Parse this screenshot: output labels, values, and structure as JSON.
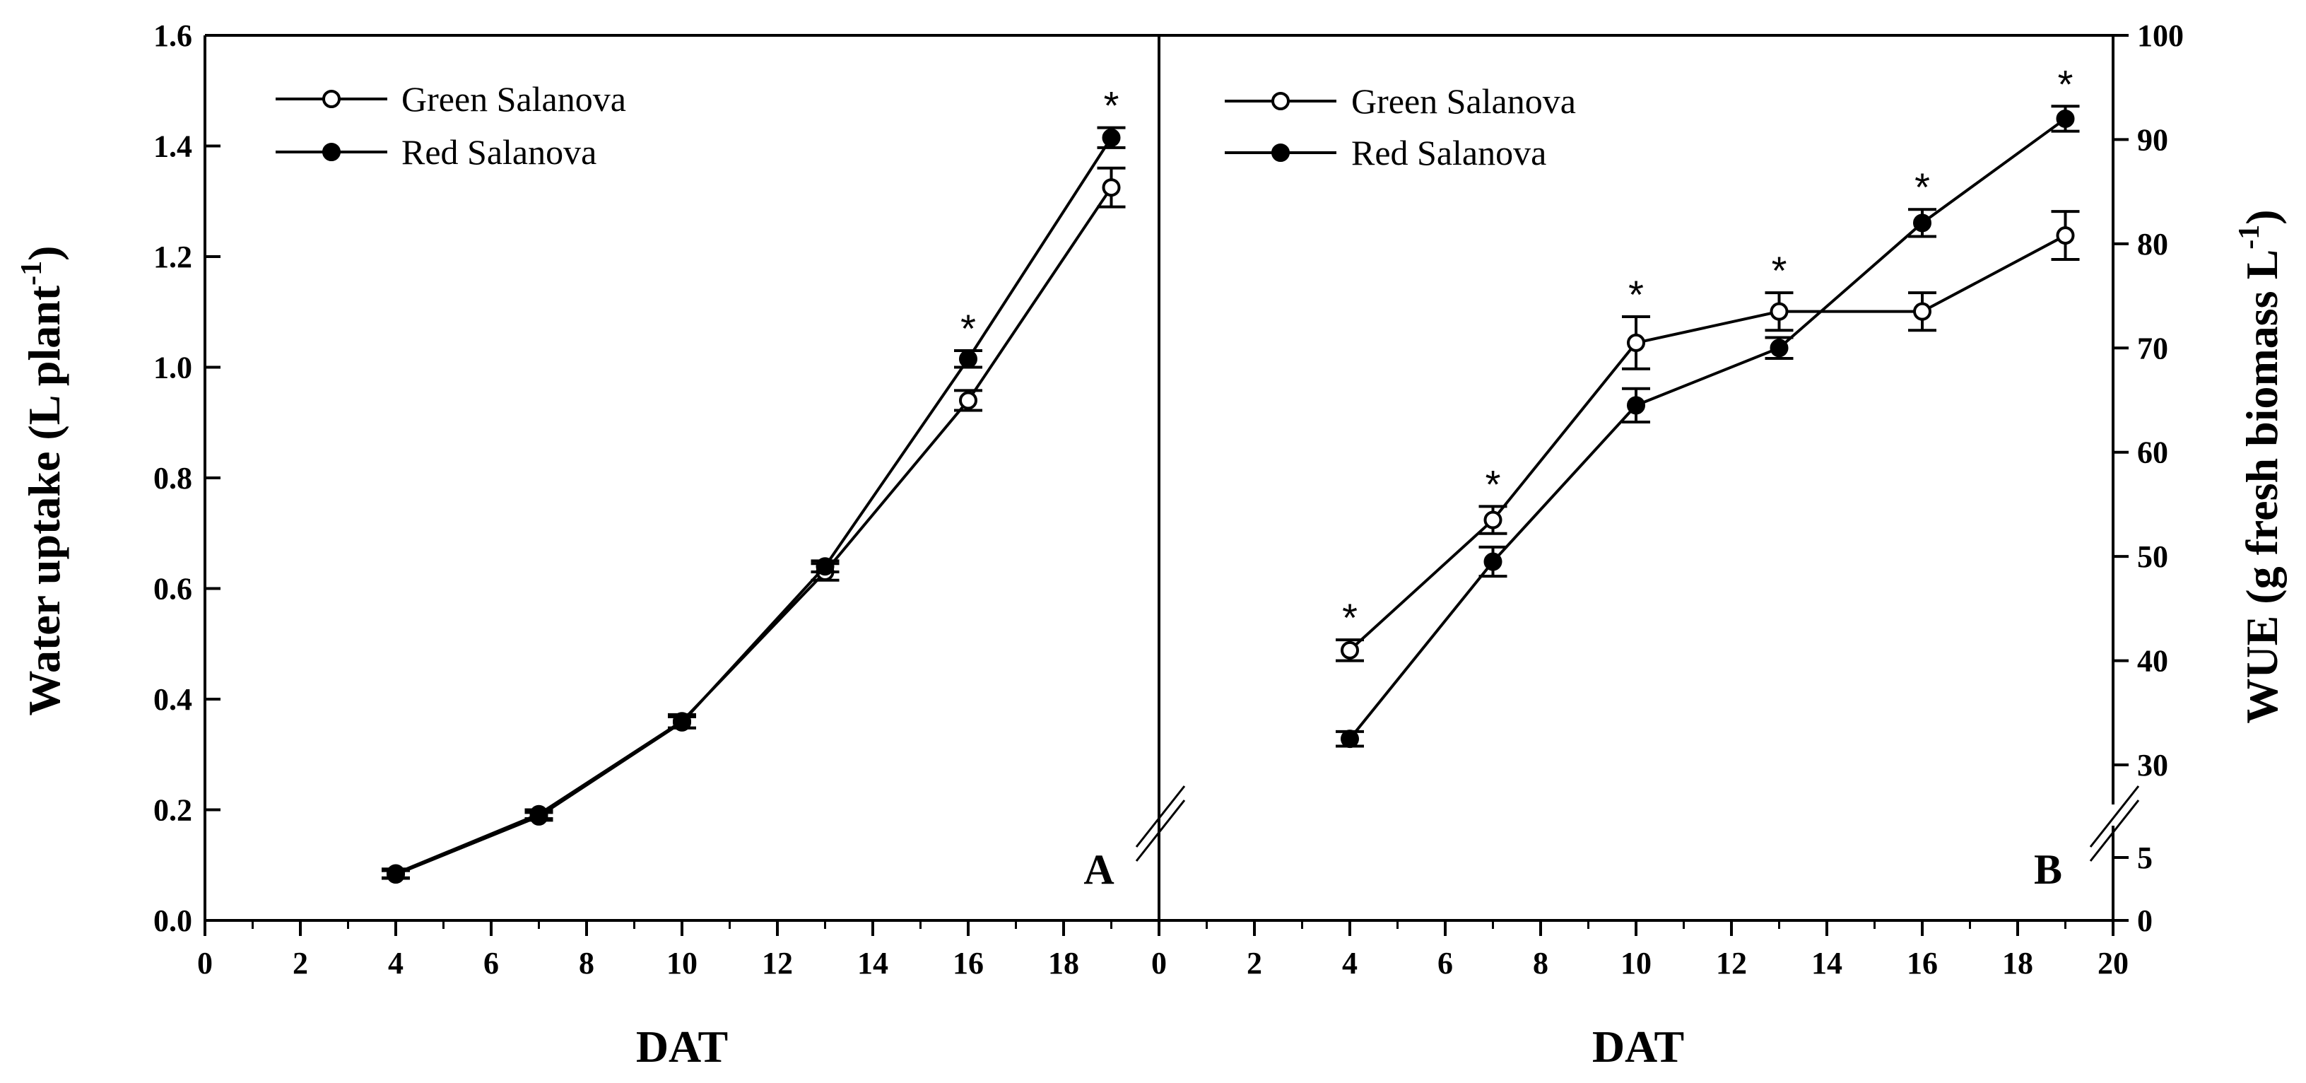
{
  "chart_data": [
    {
      "panel": "A",
      "type": "line",
      "xlabel": "DAT",
      "ylabel": "Water uptake (L plant-1)",
      "ylabel_main": "Water uptake (L plant",
      "ylabel_sup": "-1",
      "ylabel_close": ")",
      "xlim": [
        0,
        20
      ],
      "ylim": [
        0,
        1.6
      ],
      "xticks": [
        "0",
        "2",
        "4",
        "6",
        "8",
        "10",
        "12",
        "14",
        "16",
        "18"
      ],
      "yticks": [
        "0.0",
        "0.2",
        "0.4",
        "0.6",
        "0.8",
        "1.0",
        "1.2",
        "1.4",
        "1.6"
      ],
      "legend": [
        "Green Salanova",
        "Red Salanova"
      ],
      "series": [
        {
          "name": "Green Salanova",
          "marker": "open",
          "x": [
            4,
            7,
            10,
            13,
            16,
            19
          ],
          "y": [
            0.085,
            0.192,
            0.36,
            0.63,
            0.94,
            1.325
          ],
          "err": [
            0.008,
            0.008,
            0.012,
            0.015,
            0.018,
            0.035
          ]
        },
        {
          "name": "Red Salanova",
          "marker": "filled",
          "x": [
            4,
            7,
            10,
            13,
            16,
            19
          ],
          "y": [
            0.083,
            0.188,
            0.358,
            0.64,
            1.015,
            1.415
          ],
          "err": [
            0.007,
            0.007,
            0.01,
            0.01,
            0.015,
            0.018
          ]
        }
      ],
      "significance": {
        "x": [
          16,
          19
        ],
        "marker": "*"
      },
      "panel_label": "A"
    },
    {
      "panel": "B",
      "type": "line",
      "xlabel": "DAT",
      "ylabel": "WUE (g fresh biomass L-1)",
      "ylabel_main": "WUE (g fresh biomass L",
      "ylabel_sup": "-1",
      "ylabel_close": ")",
      "xlim": [
        0,
        20
      ],
      "ylim": [
        0,
        100
      ],
      "axis_break": [
        5,
        30
      ],
      "xticks": [
        "0",
        "2",
        "4",
        "6",
        "8",
        "10",
        "12",
        "14",
        "16",
        "18",
        "20"
      ],
      "yticks": [
        "0",
        "5",
        "30",
        "40",
        "50",
        "60",
        "70",
        "80",
        "90",
        "100"
      ],
      "legend": [
        "Green Salanova",
        "Red Salanova"
      ],
      "series": [
        {
          "name": "Green Salanova",
          "marker": "open",
          "x": [
            4,
            7,
            10,
            13,
            16,
            19
          ],
          "y": [
            41,
            53.5,
            70.5,
            73.5,
            73.5,
            80.8
          ],
          "err": [
            1,
            1.3,
            2.5,
            1.8,
            1.8,
            2.3
          ]
        },
        {
          "name": "Red Salanova",
          "marker": "filled",
          "x": [
            4,
            7,
            10,
            13,
            16,
            19
          ],
          "y": [
            32.5,
            49.5,
            64.5,
            70,
            82,
            92
          ],
          "err": [
            0.7,
            1.4,
            1.6,
            1,
            1.3,
            1.2
          ]
        }
      ],
      "significance": {
        "x": [
          4,
          7,
          10,
          13,
          16,
          19
        ],
        "marker": "*"
      },
      "panel_label": "B"
    }
  ]
}
